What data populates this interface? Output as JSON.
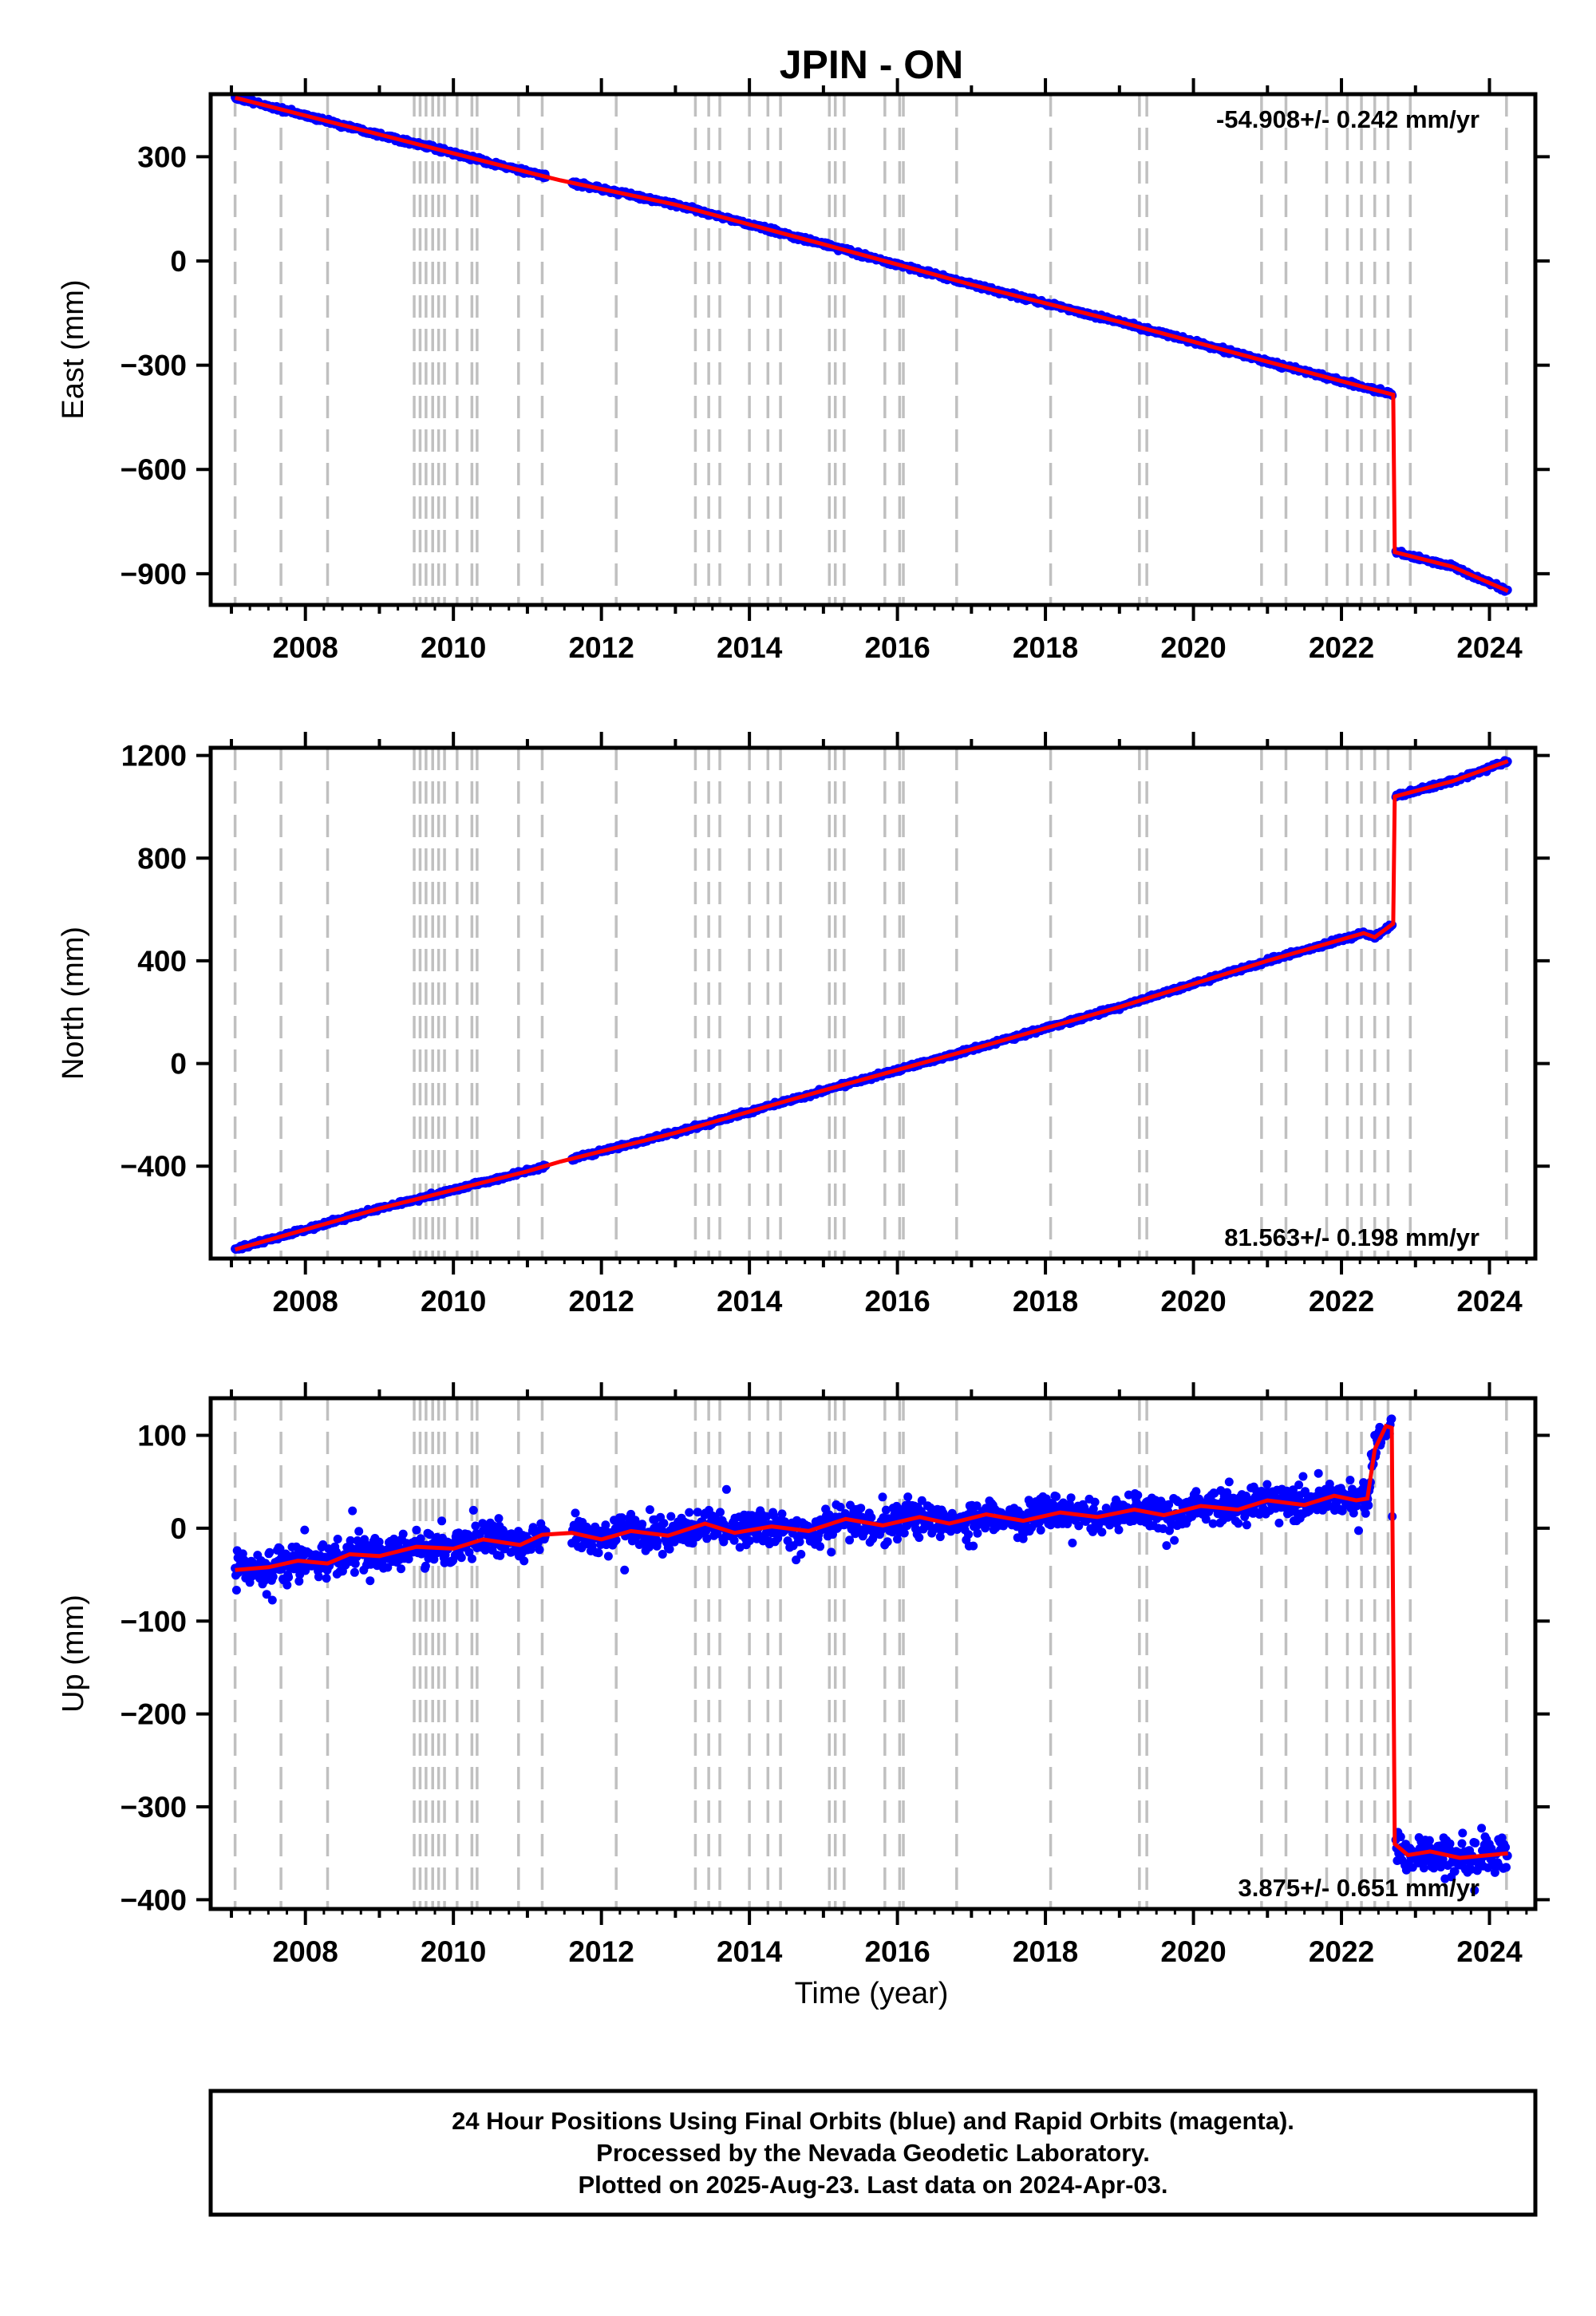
{
  "chart_data": {
    "type": "scatter",
    "title": "JPIN - ON",
    "xlabel": "Time (year)",
    "xlim": [
      2006.72,
      2024.62
    ],
    "xticks": [
      2008,
      2010,
      2012,
      2014,
      2016,
      2018,
      2020,
      2022,
      2024
    ],
    "series_colors": {
      "final_orbits": "#0000ff",
      "model": "#ff0000",
      "breaks": "#c0c0c0"
    },
    "break_epochs": [
      2007.05,
      2007.67,
      2008.3,
      2009.47,
      2009.55,
      2009.63,
      2009.72,
      2009.8,
      2009.88,
      2010.05,
      2010.25,
      2010.32,
      2010.88,
      2011.2,
      2012.2,
      2013.27,
      2013.45,
      2013.6,
      2014.0,
      2014.25,
      2014.42,
      2015.08,
      2015.16,
      2015.28,
      2015.83,
      2016.03,
      2016.08,
      2016.8,
      2018.07,
      2019.27,
      2019.37,
      2020.92,
      2021.25,
      2021.8,
      2022.08,
      2022.27,
      2022.45,
      2022.63,
      2022.93,
      2024.23
    ],
    "panels": [
      {
        "ylabel": "East (mm)",
        "ylim": [
          -990,
          480
        ],
        "yticks": [
          300,
          0,
          -300,
          -600,
          -900
        ],
        "rate": "-54.908+/- 0.242 mm/yr",
        "rate_position": "top-right",
        "model": [
          [
            2007.05,
            470
          ],
          [
            2011.1,
            250
          ],
          [
            2011.45,
            232
          ],
          [
            2013.0,
            162
          ],
          [
            2015.0,
            48
          ],
          [
            2017.0,
            -68
          ],
          [
            2019.0,
            -175
          ],
          [
            2021.0,
            -290
          ],
          [
            2022.7,
            -385
          ],
          [
            2022.72,
            -838
          ],
          [
            2023.5,
            -880
          ],
          [
            2024.25,
            -950
          ]
        ],
        "noise": 4,
        "gaps": [
          [
            2011.25,
            2011.6
          ]
        ]
      },
      {
        "ylabel": "North (mm)",
        "ylim": [
          -760,
          1230
        ],
        "yticks": [
          1200,
          800,
          400,
          0,
          -400
        ],
        "rate": "81.563+/- 0.198 mm/yr",
        "rate_position": "bottom-right",
        "model": [
          [
            2007.05,
            -725
          ],
          [
            2009.0,
            -565
          ],
          [
            2011.0,
            -420
          ],
          [
            2011.45,
            -382
          ],
          [
            2013.0,
            -270
          ],
          [
            2015.0,
            -105
          ],
          [
            2017.0,
            55
          ],
          [
            2019.0,
            220
          ],
          [
            2021.0,
            400
          ],
          [
            2022.3,
            508
          ],
          [
            2022.45,
            492
          ],
          [
            2022.7,
            545
          ],
          [
            2022.72,
            1040
          ],
          [
            2023.5,
            1100
          ],
          [
            2024.25,
            1178
          ]
        ],
        "noise": 5,
        "gaps": [
          [
            2011.25,
            2011.6
          ]
        ]
      },
      {
        "ylabel": "Up (mm)",
        "ylim": [
          -410,
          140
        ],
        "yticks": [
          100,
          0,
          -100,
          -200,
          -300,
          -400
        ],
        "rate": "3.875+/- 0.651 mm/yr",
        "rate_position": "bottom-right",
        "model": [
          [
            2007.05,
            -45
          ],
          [
            2007.5,
            -42
          ],
          [
            2007.9,
            -35
          ],
          [
            2008.3,
            -38
          ],
          [
            2008.6,
            -28
          ],
          [
            2009.0,
            -30
          ],
          [
            2009.5,
            -20
          ],
          [
            2010.0,
            -22
          ],
          [
            2010.4,
            -12
          ],
          [
            2010.9,
            -18
          ],
          [
            2011.2,
            -7
          ],
          [
            2011.6,
            -5
          ],
          [
            2012.0,
            -12
          ],
          [
            2012.4,
            -3
          ],
          [
            2012.9,
            -8
          ],
          [
            2013.4,
            5
          ],
          [
            2013.8,
            -5
          ],
          [
            2014.3,
            2
          ],
          [
            2014.8,
            -3
          ],
          [
            2015.3,
            10
          ],
          [
            2015.8,
            3
          ],
          [
            2016.3,
            12
          ],
          [
            2016.7,
            5
          ],
          [
            2017.2,
            15
          ],
          [
            2017.7,
            8
          ],
          [
            2018.2,
            17
          ],
          [
            2018.7,
            12
          ],
          [
            2019.2,
            20
          ],
          [
            2019.6,
            14
          ],
          [
            2020.1,
            24
          ],
          [
            2020.6,
            20
          ],
          [
            2021.0,
            30
          ],
          [
            2021.5,
            25
          ],
          [
            2021.9,
            35
          ],
          [
            2022.2,
            30
          ],
          [
            2022.35,
            32
          ],
          [
            2022.45,
            85
          ],
          [
            2022.6,
            110
          ],
          [
            2022.68,
            108
          ],
          [
            2022.72,
            -340
          ],
          [
            2022.9,
            -352
          ],
          [
            2023.2,
            -348
          ],
          [
            2023.6,
            -355
          ],
          [
            2024.0,
            -352
          ],
          [
            2024.25,
            -350
          ]
        ],
        "noise": 11,
        "gaps": [
          [
            2011.25,
            2011.6
          ]
        ]
      }
    ]
  },
  "footer": {
    "line1": "24 Hour Positions Using Final Orbits (blue) and Rapid Orbits (magenta).",
    "line2": "Processed by the Nevada Geodetic Laboratory.",
    "line3": "Plotted on 2025-Aug-23. Last data on 2024-Apr-03."
  }
}
